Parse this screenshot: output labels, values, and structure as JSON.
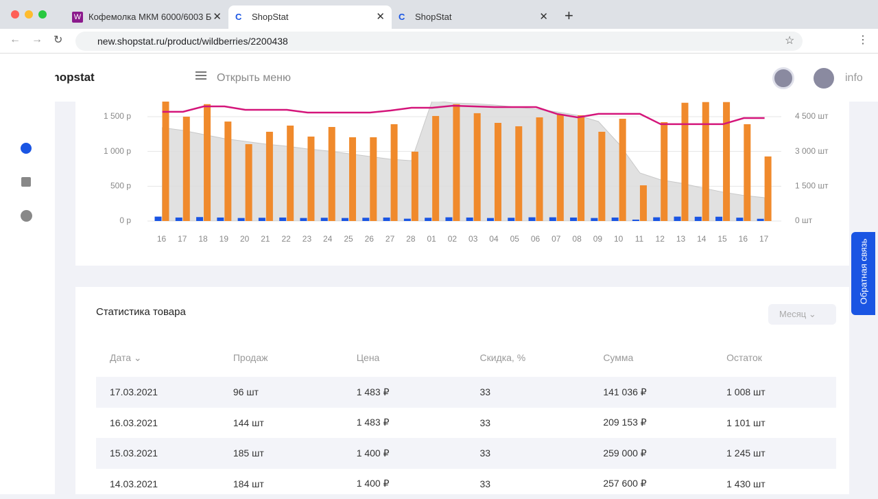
{
  "browser": {
    "tabs": [
      "Кофемолка МКМ 6000/6003 Б",
      "ShopStat",
      "ShopStat"
    ],
    "url": "new.shopstat.ru/product/wildberries/2200438"
  },
  "header": {
    "logo": "Shopstat",
    "menu": "Открыть меню",
    "user": "info"
  },
  "feedback": "Обратная связь",
  "chart_data": {
    "type": "bar",
    "categories": [
      "16",
      "17",
      "18",
      "19",
      "20",
      "21",
      "22",
      "23",
      "24",
      "25",
      "26",
      "27",
      "28",
      "01",
      "02",
      "03",
      "04",
      "05",
      "06",
      "07",
      "08",
      "09",
      "10",
      "11",
      "12",
      "13",
      "14",
      "15",
      "16",
      "17"
    ],
    "ylim": [
      0,
      1717
    ],
    "yticks": [
      {
        "value": 0,
        "label": "0 р"
      },
      {
        "value": 500,
        "label": "500 р"
      },
      {
        "value": 1000,
        "label": "1 000 р"
      },
      {
        "value": 1500,
        "label": "1 500 р"
      }
    ],
    "y2lim": [
      0,
      5150
    ],
    "y2ticks": [
      {
        "value": 0,
        "label": "0 шт"
      },
      {
        "value": 1500,
        "label": "1 500 шт"
      },
      {
        "value": 3000,
        "label": "3 000 шт"
      },
      {
        "value": 4500,
        "label": "4 500 шт"
      }
    ],
    "grid": true,
    "series": [
      {
        "type": "area",
        "axis": "y2",
        "color": "#dcdcdc",
        "values": [
          4026,
          3907,
          3730,
          3552,
          3434,
          3315,
          3226,
          3108,
          3019,
          2901,
          2782,
          2664,
          2600,
          5200,
          5091,
          5062,
          5002,
          4914,
          4825,
          4706,
          4558,
          4292,
          3315,
          2072,
          1776,
          1628,
          1430,
          1245,
          1101,
          1008
        ]
      },
      {
        "type": "bar",
        "axis": "y2",
        "color": "#1a55e3",
        "values": [
          190,
          150,
          170,
          150,
          130,
          140,
          150,
          130,
          140,
          130,
          140,
          150,
          100,
          140,
          160,
          150,
          130,
          140,
          160,
          160,
          150,
          130,
          150,
          60,
          160,
          190,
          184,
          185,
          144,
          96
        ]
      },
      {
        "type": "bar",
        "axis": "y",
        "color": "#f08a2c",
        "values": [
          1720,
          1500,
          1680,
          1430,
          1105,
          1283,
          1372,
          1214,
          1352,
          1204,
          1204,
          1392,
          997,
          1510,
          1680,
          1550,
          1411,
          1362,
          1490,
          1530,
          1520,
          1283,
          1470,
          513,
          1421,
          1700,
          1710,
          1710,
          1392,
          928
        ]
      },
      {
        "type": "line",
        "axis": "y",
        "color": "#d4157a",
        "values": [
          1570,
          1570,
          1648,
          1648,
          1599,
          1599,
          1599,
          1559,
          1559,
          1559,
          1559,
          1589,
          1628,
          1628,
          1658,
          1648,
          1638,
          1638,
          1638,
          1540,
          1490,
          1540,
          1540,
          1540,
          1392,
          1392,
          1392,
          1392,
          1480,
          1480
        ]
      }
    ]
  },
  "stats": {
    "title": "Статистика товара",
    "period": "Месяц",
    "table": {
      "columns": [
        "Дата ⌄",
        "Продаж",
        "Цена",
        "Скидка, %",
        "Сумма",
        "Остаток"
      ],
      "rows": [
        [
          "17.03.2021",
          "96 шт",
          "1 483 ₽",
          "33",
          "141 036 ₽",
          "1 008 шт"
        ],
        [
          "16.03.2021",
          "144 шт",
          "1 483 ₽",
          "33",
          "209 153 ₽",
          "1 101 шт"
        ],
        [
          "15.03.2021",
          "185 шт",
          "1 400 ₽",
          "33",
          "259 000 ₽",
          "1 245 шт"
        ],
        [
          "14.03.2021",
          "184 шт",
          "1 400 ₽",
          "33",
          "257 600 ₽",
          "1 430 шт"
        ]
      ]
    }
  }
}
